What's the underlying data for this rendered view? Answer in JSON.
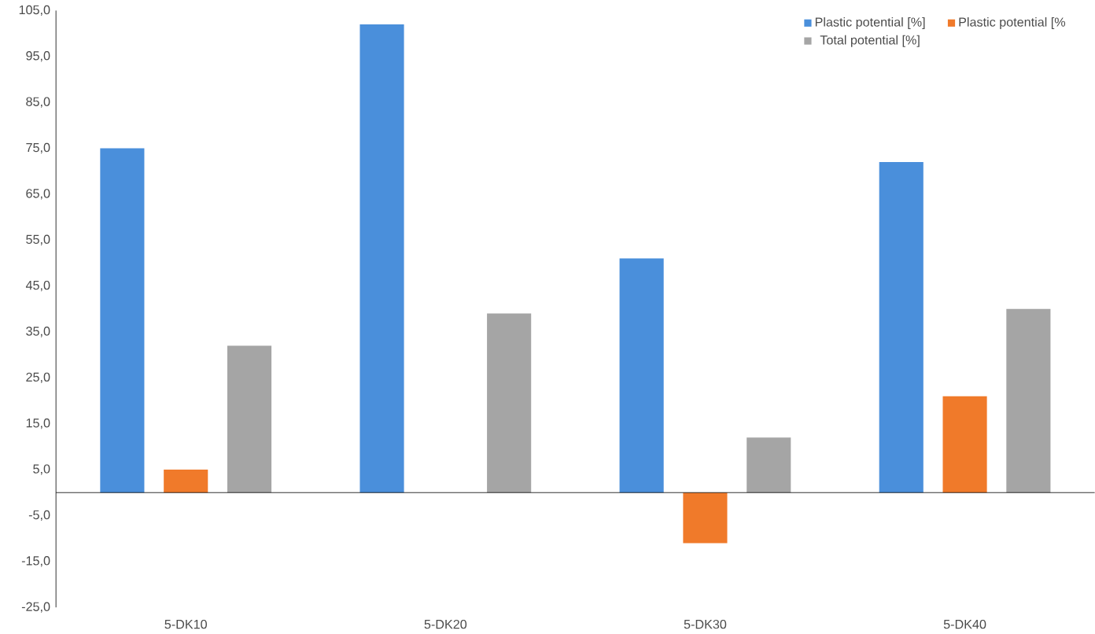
{
  "chart_data": {
    "type": "bar",
    "categories": [
      "5-DK10",
      "5-DK20",
      "5-DK30",
      "5-DK40"
    ],
    "series": [
      {
        "name": "Plastic potential [%]",
        "color": "#4a8fdb",
        "values": [
          75,
          102,
          51,
          72
        ]
      },
      {
        "name": "Plastic potential [%",
        "color": "#f07a2a",
        "values": [
          5,
          0,
          -11,
          21
        ]
      },
      {
        "name": "Total potential [%]",
        "color": "#a5a5a5",
        "values": [
          32,
          39,
          12,
          40
        ]
      }
    ],
    "ylim": [
      -25,
      105
    ],
    "yticks": [
      {
        "value": 105,
        "label": "105,0"
      },
      {
        "value": 95,
        "label": "95,0"
      },
      {
        "value": 85,
        "label": "85,0"
      },
      {
        "value": 75,
        "label": "75,0"
      },
      {
        "value": 65,
        "label": "65,0"
      },
      {
        "value": 55,
        "label": "55,0"
      },
      {
        "value": 45,
        "label": "45,0"
      },
      {
        "value": 35,
        "label": "35,0"
      },
      {
        "value": 25,
        "label": "25,0"
      },
      {
        "value": 15,
        "label": "15,0"
      },
      {
        "value": 5,
        "label": "5,0"
      },
      {
        "value": -5,
        "label": "-5,0"
      },
      {
        "value": -15,
        "label": "-15,0"
      },
      {
        "value": -25,
        "label": "-25,0"
      }
    ],
    "grid": false,
    "legend": "top right"
  }
}
